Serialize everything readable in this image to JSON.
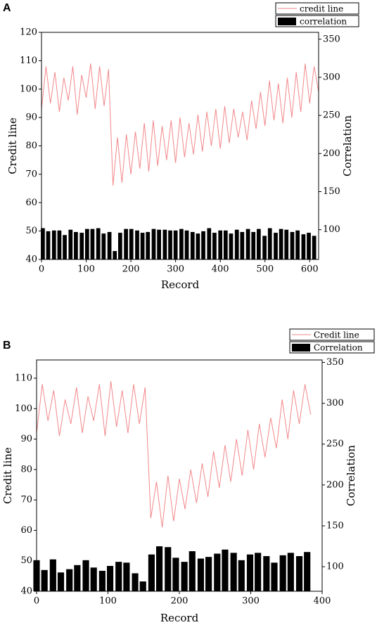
{
  "chart_data": [
    {
      "type": "combo",
      "label": "A",
      "xlabel": "Record",
      "ylabel": "Credit line",
      "y2label": "Correlation",
      "xlim": [
        0,
        620
      ],
      "xticks": [
        0,
        100,
        200,
        300,
        400,
        500,
        600
      ],
      "ylim": [
        40,
        120
      ],
      "yticks": [
        40,
        50,
        60,
        70,
        80,
        90,
        100,
        110,
        120
      ],
      "y2lim": [
        61,
        359
      ],
      "y2ticks": [
        100,
        150,
        200,
        250,
        300,
        350
      ],
      "series": [
        {
          "name": "credit line",
          "type": "line",
          "color": "#f2878a",
          "x": [
            0,
            10,
            20,
            30,
            40,
            50,
            60,
            70,
            80,
            90,
            100,
            110,
            120,
            130,
            140,
            150,
            160,
            170,
            180,
            190,
            200,
            210,
            220,
            230,
            240,
            250,
            260,
            270,
            280,
            290,
            300,
            310,
            320,
            330,
            340,
            350,
            360,
            370,
            380,
            390,
            400,
            410,
            420,
            430,
            440,
            450,
            460,
            470,
            480,
            490,
            500,
            510,
            520,
            530,
            540,
            550,
            560,
            570,
            580,
            590,
            600,
            610,
            620
          ],
          "values": [
            93,
            108,
            95,
            106,
            92,
            104,
            96,
            108,
            91,
            105,
            97,
            109,
            93,
            108,
            94,
            107,
            66,
            83,
            67,
            84,
            70,
            85,
            72,
            88,
            71,
            89,
            73,
            87,
            75,
            89,
            74,
            90,
            76,
            88,
            77,
            91,
            78,
            92,
            80,
            93,
            79,
            94,
            81,
            93,
            83,
            92,
            82,
            96,
            86,
            99,
            87,
            103,
            89,
            102,
            88,
            104,
            90,
            106,
            92,
            109,
            95,
            108,
            99
          ]
        },
        {
          "name": "correlation",
          "type": "bar",
          "axis": "y2",
          "color": "#000000",
          "x": [
            3,
            15,
            28,
            40,
            52,
            65,
            77,
            90,
            102,
            114,
            127,
            139,
            152,
            164,
            176,
            189,
            201,
            214,
            226,
            238,
            251,
            263,
            276,
            288,
            300,
            313,
            325,
            338,
            350,
            362,
            375,
            387,
            400,
            412,
            424,
            437,
            449,
            462,
            474,
            486,
            499,
            511,
            524,
            536,
            548,
            561,
            573,
            586,
            598,
            610
          ],
          "values": [
            102,
            98,
            99,
            99,
            93,
            100,
            97,
            96,
            101,
            101,
            102,
            95,
            97,
            72,
            96,
            101,
            101,
            99,
            96,
            97,
            101,
            100,
            100,
            99,
            99,
            101,
            99,
            97,
            95,
            98,
            102,
            96,
            99,
            99,
            95,
            100,
            97,
            101,
            97,
            101,
            92,
            102,
            96,
            101,
            100,
            97,
            99,
            94,
            96,
            92
          ]
        }
      ]
    },
    {
      "type": "combo",
      "label": "B",
      "xlabel": "Record",
      "ylabel": "Credit line",
      "y2label": "Correlation",
      "xlim": [
        0,
        400
      ],
      "xticks": [
        0,
        100,
        200,
        300,
        400
      ],
      "ylim": [
        40,
        116
      ],
      "yticks": [
        40,
        50,
        60,
        70,
        80,
        90,
        100,
        110
      ],
      "y2lim": [
        70,
        353
      ],
      "y2ticks": [
        100,
        150,
        200,
        250,
        300,
        350
      ],
      "series": [
        {
          "name": "Credit line",
          "type": "line",
          "color": "#f2878a",
          "x": [
            0,
            8,
            16,
            24,
            32,
            40,
            48,
            56,
            64,
            72,
            80,
            88,
            96,
            104,
            112,
            120,
            128,
            136,
            144,
            152,
            160,
            168,
            176,
            184,
            192,
            200,
            208,
            216,
            224,
            232,
            240,
            248,
            256,
            264,
            272,
            280,
            288,
            296,
            304,
            312,
            320,
            328,
            336,
            344,
            352,
            360,
            368,
            376,
            384
          ],
          "values": [
            92,
            108,
            96,
            106,
            91,
            103,
            95,
            107,
            92,
            104,
            96,
            108,
            91,
            109,
            94,
            106,
            92,
            108,
            95,
            107,
            64,
            76,
            61,
            78,
            63,
            77,
            67,
            80,
            69,
            82,
            71,
            86,
            74,
            88,
            76,
            90,
            78,
            93,
            80,
            95,
            84,
            97,
            87,
            103,
            90,
            106,
            95,
            108,
            98
          ]
        },
        {
          "name": "Correlation",
          "type": "bar",
          "axis": "y2",
          "color": "#000000",
          "x": [
            0,
            11,
            23,
            34,
            46,
            57,
            69,
            80,
            92,
            103,
            115,
            126,
            138,
            149,
            161,
            172,
            184,
            195,
            207,
            218,
            230,
            241,
            253,
            264,
            276,
            287,
            299,
            310,
            322,
            333,
            345,
            356,
            368,
            379
          ],
          "values": [
            108,
            96,
            109,
            93,
            97,
            102,
            108,
            99,
            95,
            101,
            106,
            105,
            92,
            82,
            115,
            125,
            124,
            111,
            106,
            119,
            110,
            112,
            116,
            121,
            117,
            108,
            115,
            117,
            113,
            105,
            114,
            117,
            113,
            118
          ]
        }
      ]
    }
  ]
}
